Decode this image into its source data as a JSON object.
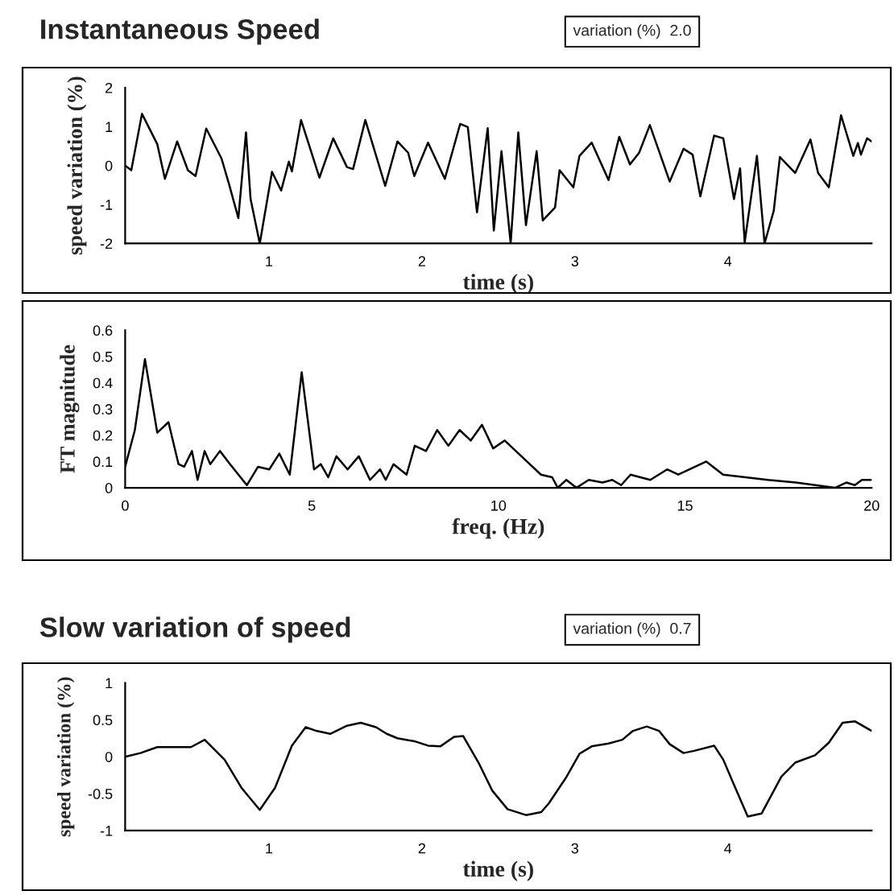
{
  "chart_data": [
    {
      "type": "line",
      "title": "Instantaneous Speed",
      "xlabel": "time (s)",
      "ylabel": "speed variation (%)",
      "annotations": [
        "variation (%)  2.0"
      ],
      "xlim": [
        0.06,
        4.94
      ],
      "ylim": [
        -2,
        2
      ],
      "xticks": [
        1,
        2,
        3,
        4
      ],
      "yticks": [
        -2,
        -1,
        0,
        1,
        2
      ],
      "grid": false,
      "legend": false,
      "series": [
        {
          "color": "#000000",
          "x": [
            0.06,
            0.1,
            0.17,
            0.27,
            0.32,
            0.4,
            0.47,
            0.52,
            0.59,
            0.69,
            0.74,
            0.8,
            0.85,
            0.88,
            0.94,
            1.02,
            1.08,
            1.13,
            1.15,
            1.21,
            1.33,
            1.42,
            1.51,
            1.55,
            1.63,
            1.76,
            1.84,
            1.91,
            1.95,
            2.04,
            2.15,
            2.25,
            2.3,
            2.36,
            2.43,
            2.47,
            2.52,
            2.58,
            2.63,
            2.68,
            2.75,
            2.79,
            2.87,
            2.9,
            2.99,
            3.03,
            3.11,
            3.22,
            3.29,
            3.36,
            3.42,
            3.49,
            3.62,
            3.71,
            3.77,
            3.82,
            3.91,
            3.97,
            4.04,
            4.08,
            4.11,
            4.19,
            4.24,
            4.3,
            4.34,
            4.44,
            4.54,
            4.59,
            4.66,
            4.74,
            4.82,
            4.85,
            4.87,
            4.91,
            4.94
          ],
          "values": [
            0,
            -0.12,
            1.33,
            0.55,
            -0.34,
            0.62,
            -0.12,
            -0.27,
            0.95,
            0.18,
            -0.49,
            -1.35,
            0.85,
            -0.86,
            -2.0,
            -0.16,
            -0.64,
            0.1,
            -0.15,
            1.17,
            -0.31,
            0.7,
            -0.04,
            -0.09,
            1.17,
            -0.52,
            0.62,
            0.33,
            -0.27,
            0.59,
            -0.34,
            1.07,
            0.99,
            -1.2,
            0.96,
            -1.67,
            0.37,
            -2.0,
            0.85,
            -1.53,
            0.37,
            -1.41,
            -1.08,
            -0.12,
            -0.56,
            0.25,
            0.59,
            -0.37,
            0.74,
            0.03,
            0.33,
            1.04,
            -0.41,
            0.43,
            0.28,
            -0.79,
            0.77,
            0.7,
            -0.86,
            -0.07,
            -1.97,
            0.25,
            -2.0,
            -1.16,
            0.22,
            -0.19,
            0.67,
            -0.19,
            -0.56,
            1.29,
            0.25,
            0.58,
            0.28,
            0.7,
            0.62
          ]
        }
      ]
    },
    {
      "type": "line",
      "xlabel": "freq. (Hz)",
      "ylabel": "FT magnitude",
      "xlim": [
        0,
        20
      ],
      "ylim": [
        0,
        0.6
      ],
      "xticks": [
        0,
        5,
        10,
        15,
        20
      ],
      "yticks": [
        0,
        0.1,
        0.2,
        0.3,
        0.4,
        0.5,
        0.6
      ],
      "grid": false,
      "legend": false,
      "series": [
        {
          "color": "#000000",
          "x": [
            0,
            0.26,
            0.53,
            0.86,
            1.16,
            1.43,
            1.58,
            1.79,
            1.94,
            2.13,
            2.28,
            2.54,
            2.81,
            3.26,
            3.56,
            3.86,
            4.13,
            4.41,
            4.73,
            5.06,
            5.24,
            5.44,
            5.66,
            5.96,
            6.26,
            6.56,
            6.83,
            6.98,
            7.19,
            7.54,
            7.76,
            8.06,
            8.36,
            8.66,
            8.96,
            9.26,
            9.56,
            9.86,
            10.17,
            10.69,
            11.14,
            11.44,
            11.59,
            11.82,
            12.09,
            12.42,
            12.79,
            13.05,
            13.29,
            13.54,
            14.07,
            14.52,
            14.82,
            15.57,
            16.02,
            16.62,
            17.22,
            17.97,
            19.02,
            19.32,
            19.55,
            19.74,
            20.0
          ],
          "values": [
            0.08,
            0.22,
            0.49,
            0.21,
            0.25,
            0.09,
            0.08,
            0.14,
            0.03,
            0.14,
            0.09,
            0.14,
            0.09,
            0.01,
            0.08,
            0.07,
            0.13,
            0.05,
            0.44,
            0.07,
            0.09,
            0.04,
            0.12,
            0.07,
            0.12,
            0.03,
            0.07,
            0.03,
            0.09,
            0.05,
            0.16,
            0.14,
            0.22,
            0.16,
            0.22,
            0.18,
            0.24,
            0.15,
            0.18,
            0.11,
            0.05,
            0.04,
            0.0,
            0.03,
            0.0,
            0.03,
            0.02,
            0.03,
            0.01,
            0.05,
            0.03,
            0.07,
            0.05,
            0.1,
            0.05,
            0.04,
            0.03,
            0.02,
            0.0,
            0.02,
            0.01,
            0.03,
            0.03
          ]
        }
      ]
    },
    {
      "type": "line",
      "title": "Slow variation of speed",
      "xlabel": "time (s)",
      "ylabel": "speed variation (%)",
      "annotations": [
        "variation (%)  0.7"
      ],
      "xlim": [
        0.06,
        4.94
      ],
      "ylim": [
        -1,
        1
      ],
      "xticks": [
        1,
        2,
        3,
        4
      ],
      "yticks": [
        -1,
        -0.5,
        0,
        0.5,
        1
      ],
      "grid": false,
      "legend": false,
      "series": [
        {
          "color": "#000000",
          "x": [
            0.06,
            0.16,
            0.27,
            0.49,
            0.58,
            0.71,
            0.82,
            0.94,
            1.04,
            1.15,
            1.24,
            1.31,
            1.4,
            1.51,
            1.6,
            1.7,
            1.77,
            1.84,
            1.95,
            2.04,
            2.12,
            2.21,
            2.27,
            2.37,
            2.46,
            2.56,
            2.68,
            2.78,
            2.83,
            2.94,
            3.03,
            3.11,
            3.22,
            3.31,
            3.38,
            3.47,
            3.55,
            3.62,
            3.71,
            3.78,
            3.91,
            3.97,
            4.04,
            4.13,
            4.22,
            4.35,
            4.44,
            4.57,
            4.66,
            4.75,
            4.83,
            4.94
          ],
          "values": [
            0,
            0.05,
            0.13,
            0.13,
            0.23,
            -0.04,
            -0.42,
            -0.72,
            -0.42,
            0.15,
            0.4,
            0.35,
            0.31,
            0.42,
            0.46,
            0.4,
            0.31,
            0.25,
            0.21,
            0.15,
            0.14,
            0.27,
            0.28,
            -0.08,
            -0.46,
            -0.71,
            -0.79,
            -0.75,
            -0.63,
            -0.29,
            0.04,
            0.14,
            0.18,
            0.23,
            0.35,
            0.41,
            0.35,
            0.17,
            0.05,
            0.08,
            0.15,
            -0.04,
            -0.38,
            -0.81,
            -0.77,
            -0.27,
            -0.08,
            0.02,
            0.19,
            0.46,
            0.48,
            0.35
          ]
        }
      ]
    }
  ]
}
